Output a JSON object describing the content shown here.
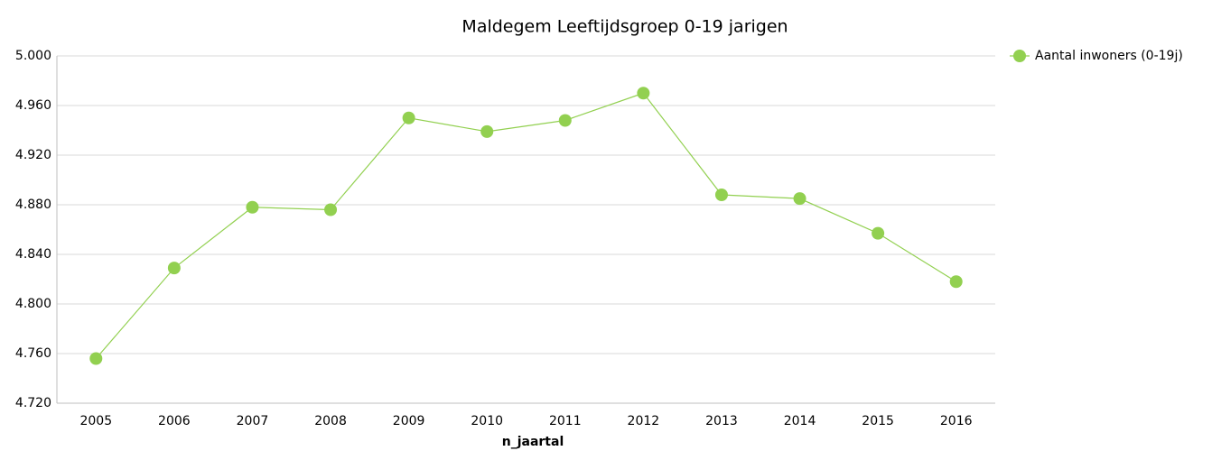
{
  "chart_data": {
    "type": "line",
    "title": "Maldegem  Leeftijdsgroep 0-19 jarigen",
    "x_label": "n_jaartal",
    "categories": [
      "2005",
      "2006",
      "2007",
      "2008",
      "2009",
      "2010",
      "2011",
      "2012",
      "2013",
      "2014",
      "2015",
      "2016"
    ],
    "series": [
      {
        "name": "Aantal inwoners (0-19j)",
        "color": "#92d050",
        "values": [
          4756,
          4829,
          4878,
          4876,
          4950,
          4939,
          4948,
          4970,
          4888,
          4885,
          4857,
          4818
        ]
      }
    ],
    "ylim": [
      4720,
      5000
    ],
    "yticks": [
      {
        "value": 4720,
        "label": "4.720"
      },
      {
        "value": 4760,
        "label": "4.760"
      },
      {
        "value": 4800,
        "label": "4.800"
      },
      {
        "value": 4840,
        "label": "4.840"
      },
      {
        "value": 4880,
        "label": "4.880"
      },
      {
        "value": 4920,
        "label": "4.920"
      },
      {
        "value": 4960,
        "label": "4.960"
      },
      {
        "value": 5000,
        "label": "5.000"
      }
    ],
    "grid": true,
    "legend": "right"
  }
}
